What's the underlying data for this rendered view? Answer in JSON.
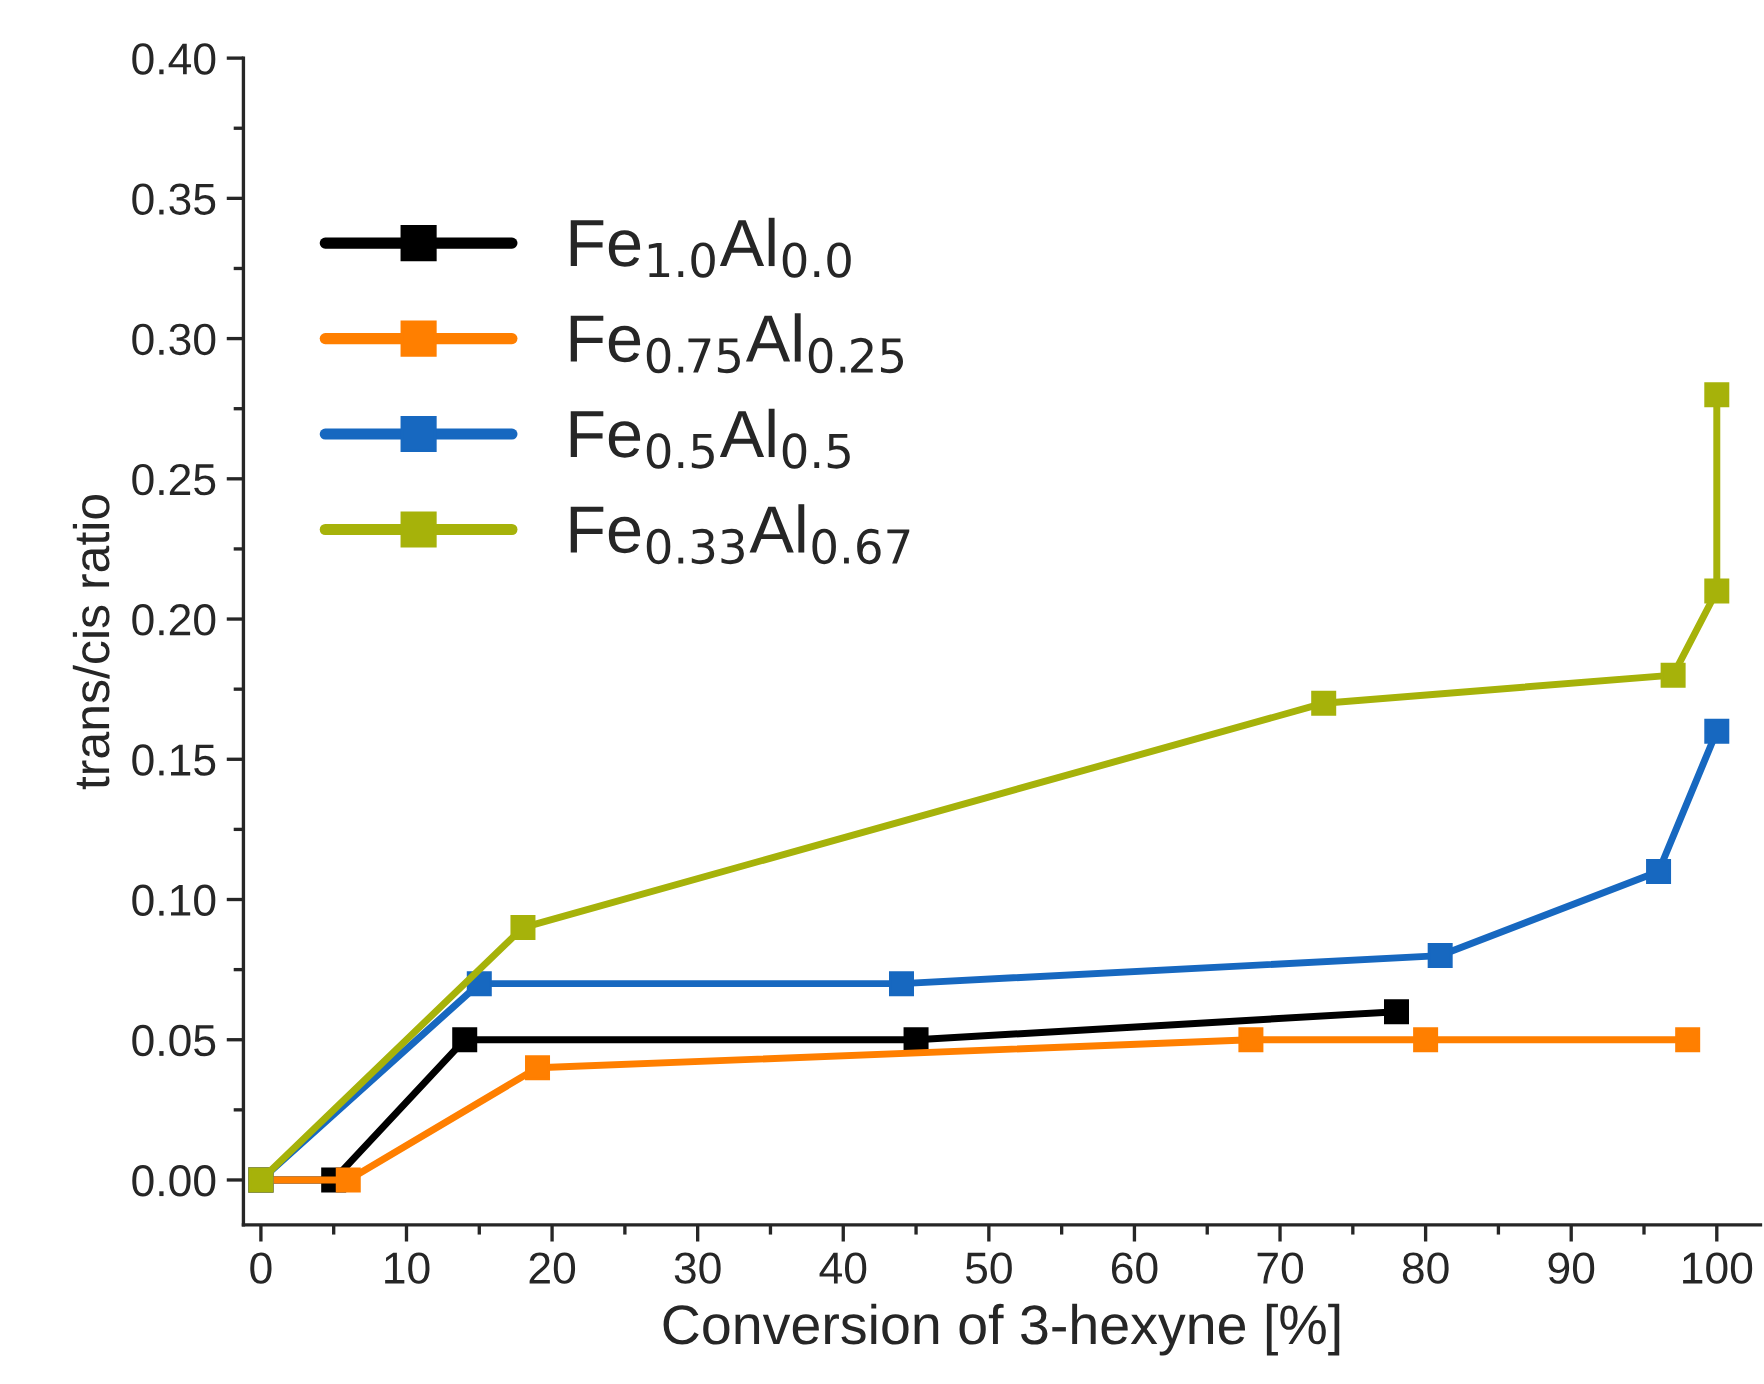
{
  "chart_data": {
    "type": "line",
    "xlabel": "Conversion of 3-hexyne [%]",
    "ylabel": "trans/cis ratio",
    "xlim": [
      -1.2,
      103
    ],
    "ylim": [
      -0.016,
      0.4
    ],
    "xticks": [
      0,
      10,
      20,
      30,
      40,
      50,
      60,
      70,
      80,
      90,
      100
    ],
    "yticks": [
      {
        "value": 0,
        "label": "0.00"
      },
      {
        "value": 0.05,
        "label": "0.05"
      },
      {
        "value": 0.1,
        "label": "0.10"
      },
      {
        "value": 0.15,
        "label": "0.15"
      },
      {
        "value": 0.2,
        "label": "0.20"
      },
      {
        "value": 0.25,
        "label": "0.25"
      },
      {
        "value": 0.3,
        "label": "0.30"
      },
      {
        "value": 0.35,
        "label": "0.35"
      },
      {
        "value": 0.4,
        "label": "0.40"
      }
    ],
    "marker": "square",
    "line_style": "solid",
    "legend": "top left",
    "grid": false,
    "series": [
      {
        "name": "Fe$_{1.0}$Al$_{0.0}$",
        "color": "#000000",
        "x": [
          0,
          5,
          14,
          45,
          78
        ],
        "values": [
          0,
          0,
          0.05,
          0.05,
          0.06
        ]
      },
      {
        "name": "Fe$_{0.75}$Al$_{0.25}$",
        "color": "#ff7f00",
        "x": [
          0,
          6,
          19,
          68,
          80,
          98
        ],
        "values": [
          0,
          0,
          0.04,
          0.05,
          0.05,
          0.05
        ]
      },
      {
        "name": "Fe$_{0.5}$Al$_{0.5}$",
        "color": "#1768c0",
        "x": [
          0,
          15,
          44,
          81,
          96,
          100
        ],
        "values": [
          0,
          0.07,
          0.07,
          0.08,
          0.11,
          0.16
        ]
      },
      {
        "name": "Fe$_{0.33}$Al$_{0.67}$",
        "color": "#a6b20a",
        "x": [
          0,
          18,
          73,
          97,
          100,
          100
        ],
        "values": [
          0,
          0.09,
          0.17,
          0.18,
          0.21,
          0.28
        ]
      }
    ]
  }
}
